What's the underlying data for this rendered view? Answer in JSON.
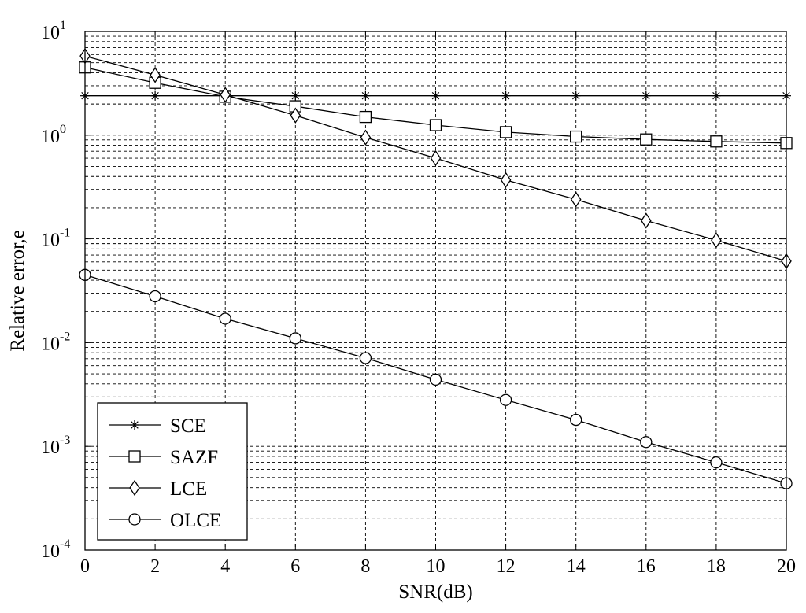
{
  "chart_data": {
    "type": "line",
    "title": "",
    "xlabel": "SNR(dB)",
    "ylabel": "Relative error,e",
    "yscale": "log",
    "xlim": [
      0,
      20
    ],
    "ylim": [
      0.0001,
      10
    ],
    "grid": true,
    "legend_position": "bottom-left",
    "x_ticks": [
      0,
      2,
      4,
      6,
      8,
      10,
      12,
      14,
      16,
      18,
      20
    ],
    "y_ticks": [
      {
        "base": "10",
        "exp": "1"
      },
      {
        "base": "10",
        "exp": "0"
      },
      {
        "base": "10",
        "exp": "-1"
      },
      {
        "base": "10",
        "exp": "-2"
      },
      {
        "base": "10",
        "exp": "-3"
      },
      {
        "base": "10",
        "exp": "-4"
      }
    ],
    "x": [
      0,
      2,
      4,
      6,
      8,
      10,
      12,
      14,
      16,
      18,
      20
    ],
    "series": [
      {
        "name": "SCE",
        "marker": "star",
        "values": [
          2.4,
          2.4,
          2.4,
          2.4,
          2.4,
          2.4,
          2.4,
          2.4,
          2.4,
          2.4,
          2.4
        ]
      },
      {
        "name": "SAZF",
        "marker": "square",
        "values": [
          4.5,
          3.2,
          2.35,
          1.9,
          1.5,
          1.25,
          1.07,
          0.97,
          0.91,
          0.87,
          0.84
        ]
      },
      {
        "name": "LCE",
        "marker": "diamond",
        "values": [
          5.8,
          3.8,
          2.45,
          1.55,
          0.95,
          0.6,
          0.37,
          0.24,
          0.15,
          0.097,
          0.061
        ]
      },
      {
        "name": "OLCE",
        "marker": "circle",
        "values": [
          0.045,
          0.028,
          0.017,
          0.011,
          0.0071,
          0.0044,
          0.0028,
          0.0018,
          0.0011,
          0.0007,
          0.00044
        ]
      }
    ]
  }
}
